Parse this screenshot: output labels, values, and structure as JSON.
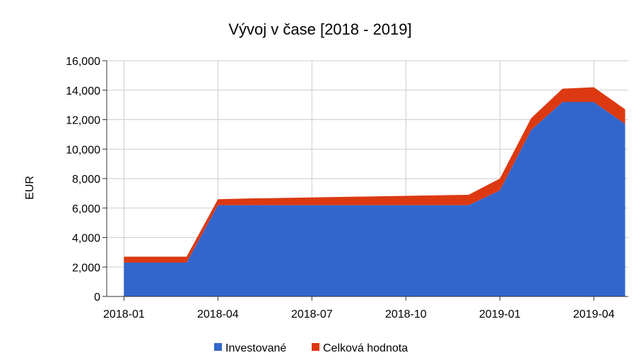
{
  "chart_data": {
    "type": "area",
    "stacked": true,
    "title": "Vývoj v čase  [2018 - 2019]",
    "xlabel": "",
    "ylabel": "EUR",
    "ylim": [
      0,
      16000
    ],
    "yticks": [
      "0",
      "2,000",
      "4,000",
      "6,000",
      "8,000",
      "10,000",
      "12,000",
      "14,000",
      "16,000"
    ],
    "ytick_values": [
      0,
      2000,
      4000,
      6000,
      8000,
      10000,
      12000,
      14000,
      16000
    ],
    "xticks": [
      "2018-01",
      "2018-04",
      "2018-07",
      "2018-10",
      "2019-01",
      "2019-04"
    ],
    "xtick_positions": [
      0,
      3,
      6,
      9,
      12,
      15
    ],
    "xlim": [
      -0.55,
      16.1
    ],
    "grid": true,
    "legend_position": "bottom",
    "x": [
      0,
      2,
      3,
      4,
      11,
      12,
      13,
      14,
      15,
      16
    ],
    "series": [
      {
        "name": "Investované",
        "color": "#3366cc",
        "values": [
          2300,
          2300,
          6200,
          6200,
          6200,
          7200,
          11300,
          13200,
          13200,
          11700
        ]
      },
      {
        "name": "Celková hodnota",
        "color": "#dc3912",
        "values": [
          400,
          400,
          400,
          450,
          700,
          800,
          800,
          900,
          1000,
          1000
        ]
      }
    ]
  }
}
